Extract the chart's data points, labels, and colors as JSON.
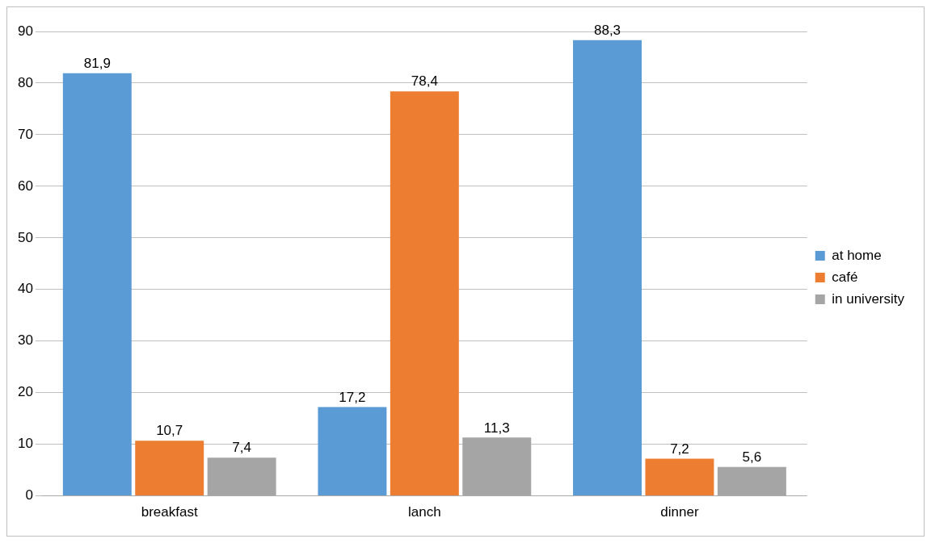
{
  "chart_data": {
    "type": "bar",
    "categories": [
      "breakfast",
      "lanch",
      "dinner"
    ],
    "series": [
      {
        "name": "at home",
        "color": "#5b9bd5",
        "values": [
          81.9,
          17.2,
          88.3
        ],
        "value_labels": [
          "81,9",
          "17,2",
          "88,3"
        ]
      },
      {
        "name": "café",
        "color": "#ed7d31",
        "values": [
          10.7,
          78.4,
          7.2
        ],
        "value_labels": [
          "10,7",
          "78,4",
          "7,2"
        ]
      },
      {
        "name": "in university",
        "color": "#a5a5a5",
        "values": [
          7.4,
          11.3,
          5.6
        ],
        "value_labels": [
          "7,4",
          "11,3",
          "5,6"
        ]
      }
    ],
    "ylim": [
      0,
      90
    ],
    "yticks": [
      0,
      10,
      20,
      30,
      40,
      50,
      60,
      70,
      80,
      90
    ],
    "grid": "y",
    "legend": "right"
  }
}
